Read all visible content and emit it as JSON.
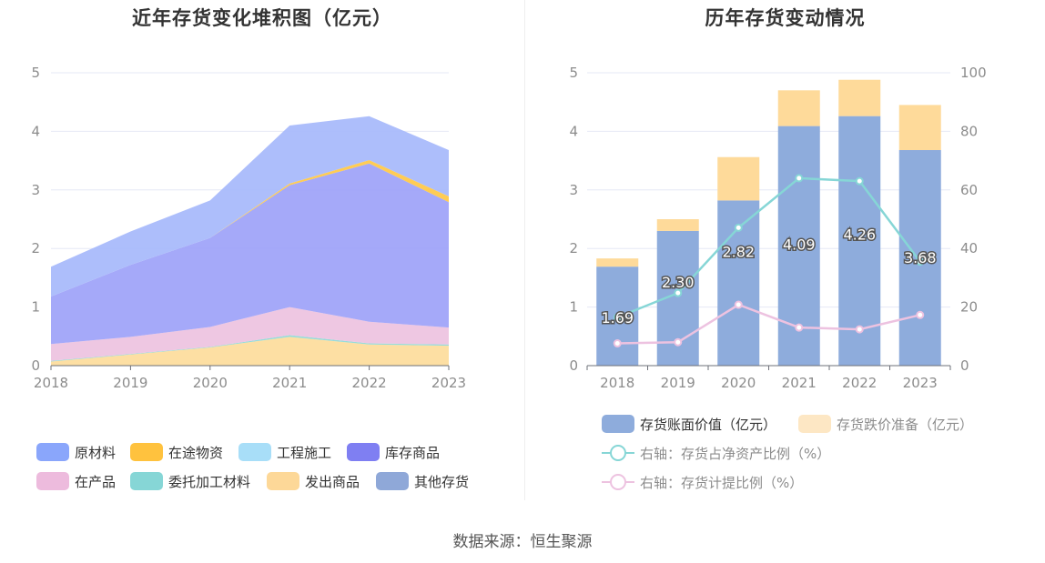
{
  "source": "数据来源：恒生聚源",
  "chart_data": [
    {
      "type": "area",
      "stacked": true,
      "title": "近年存货变化堆积图（亿元）",
      "categories": [
        "2018",
        "2019",
        "2020",
        "2021",
        "2022",
        "2023"
      ],
      "ylim": [
        0,
        5
      ],
      "yticks": [
        "0",
        "1",
        "2",
        "3",
        "4",
        "5"
      ],
      "legend": [
        "原材料",
        "在途物资",
        "工程施工",
        "库存商品",
        "在产品",
        "委托加工材料",
        "发出商品",
        "其他存货"
      ],
      "series": [
        {
          "name": "发出商品",
          "color": "#FDDC9B",
          "values": [
            0.07,
            0.19,
            0.31,
            0.49,
            0.36,
            0.34
          ]
        },
        {
          "name": "委托加工材料",
          "color": "#8FD9D6",
          "values": [
            0.01,
            0.01,
            0.01,
            0.03,
            0.02,
            0.02
          ]
        },
        {
          "name": "在产品",
          "color": "#EDC2E0",
          "values": [
            0.29,
            0.29,
            0.34,
            0.48,
            0.37,
            0.29
          ]
        },
        {
          "name": "库存商品",
          "color": "#9DA2F8",
          "values": [
            0.81,
            1.23,
            1.52,
            2.08,
            2.7,
            2.14
          ]
        },
        {
          "name": "工程施工",
          "color": "#A8DEF8",
          "values": [
            0.0,
            0.0,
            0.0,
            0.0,
            0.0,
            0.0
          ]
        },
        {
          "name": "在途物资",
          "color": "#FFC845",
          "values": [
            0.0,
            0.0,
            0.0,
            0.03,
            0.06,
            0.1
          ]
        },
        {
          "name": "其他存货",
          "color": "#8FA8D8",
          "values": [
            0.0,
            0.0,
            0.0,
            0.0,
            0.0,
            0.0
          ]
        },
        {
          "name": "原材料",
          "color": "#A6B8FB",
          "values": [
            0.51,
            0.57,
            0.64,
            0.99,
            0.75,
            0.79
          ]
        }
      ],
      "legend_colors": [
        "#8AA6FB",
        "#FFC23E",
        "#A8DEF8",
        "#7F7FF2",
        "#EDBBDD",
        "#86D6D6",
        "#FDD898",
        "#8FA8D8"
      ]
    },
    {
      "type": "bar",
      "title": "历年存货变动情况",
      "categories": [
        "2018",
        "2019",
        "2020",
        "2021",
        "2022",
        "2023"
      ],
      "ylim": [
        0,
        5
      ],
      "y2lim": [
        0,
        100
      ],
      "yticks": [
        "0",
        "1",
        "2",
        "3",
        "4",
        "5"
      ],
      "y2ticks": [
        "0",
        "20",
        "40",
        "60",
        "80",
        "100"
      ],
      "series": [
        {
          "name": "存货账面价值（亿元）",
          "color": "#8EACDC",
          "values": [
            1.69,
            2.3,
            2.82,
            4.09,
            4.26,
            3.68
          ],
          "labels": [
            "1.69",
            "2.30",
            "2.82",
            "4.09",
            "4.26",
            "3.68"
          ]
        },
        {
          "name": "存货跌价准备（亿元）",
          "color": "#FEDA9A",
          "values": [
            0.14,
            0.2,
            0.74,
            0.61,
            0.62,
            0.77
          ]
        }
      ],
      "lines": [
        {
          "name": "右轴：存货占净资产比例（%）",
          "color": "#86D6D6",
          "values": [
            16.5,
            24.8,
            47.1,
            64.0,
            63.0,
            35.5
          ]
        },
        {
          "name": "右轴：存货计提比例（%）",
          "color": "#EDC2E0",
          "values": [
            7.6,
            8.0,
            20.8,
            13.0,
            12.4,
            17.3
          ]
        }
      ]
    }
  ]
}
